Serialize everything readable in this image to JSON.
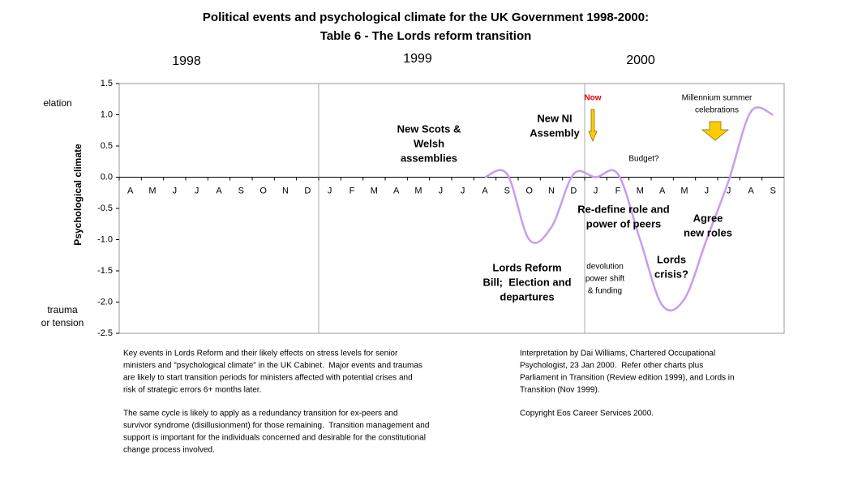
{
  "chart_data": {
    "type": "line",
    "title": "Political events and psychological climate for the UK Government 1998-2000:",
    "subtitle": "Table 6 - The Lords reform transition",
    "year_labels": [
      "1998",
      "1999",
      "2000"
    ],
    "y_label": "Psychological climate",
    "top_label": "elation",
    "bottom_label": [
      "trauma",
      "or tension"
    ],
    "categories": [
      "A",
      "M",
      "J",
      "J",
      "A",
      "S",
      "O",
      "N",
      "D",
      "J",
      "F",
      "M",
      "A",
      "M",
      "J",
      "J",
      "A",
      "S",
      "O",
      "N",
      "D",
      "J",
      "F",
      "M",
      "A",
      "M",
      "J",
      "J",
      "A",
      "S"
    ],
    "series": [
      {
        "color": "#c89cf0",
        "values": [
          null,
          null,
          null,
          null,
          null,
          null,
          null,
          null,
          null,
          null,
          null,
          null,
          null,
          null,
          null,
          null,
          0,
          0.05,
          -1.0,
          -0.8,
          0.05,
          0.0,
          0.05,
          -1.0,
          -2.05,
          -1.95,
          -1.0,
          -0.05,
          1.05,
          1.0
        ]
      }
    ],
    "ylim": [
      -2.5,
      1.5
    ],
    "yticks": [
      1.5,
      {
        "value": 1.0,
        "label": "1.0"
      },
      0.5,
      {
        "value": 0.0,
        "label": "0.0"
      },
      -0.5,
      {
        "value": -1.0,
        "label": "-1.0"
      },
      -1.5,
      {
        "value": -2.0,
        "label": "-2.0"
      },
      -2.5
    ],
    "annotations": [
      {
        "lines": [
          "New Scots &",
          "Welsh",
          "assemblies"
        ]
      },
      {
        "lines": [
          "New NI",
          "Assembly"
        ]
      },
      {
        "lines": [
          "Now"
        ]
      },
      {
        "lines": [
          "Millennium summer",
          "celebrations"
        ]
      },
      {
        "lines": [
          "Budget?"
        ]
      },
      {
        "lines": [
          "Re-define role and",
          "power of peers"
        ]
      },
      {
        "lines": [
          "Agree",
          "new roles"
        ]
      },
      {
        "lines": [
          "Lords",
          "crisis?"
        ]
      },
      {
        "lines": [
          "Lords Reform",
          "Bill;  Election and",
          "departures"
        ]
      },
      {
        "lines": [
          "devolution",
          "power shift",
          "& funding"
        ]
      }
    ],
    "notes": {
      "left": [
        [
          "Key events in Lords Reform and their likely effects on stress levels for senior",
          "ministers and \"psychological climate\" in the UK Cabinet.  Major events and traumas",
          "are likely to start transition periods for ministers affected with potential crises and",
          "risk of strategic errors 6+ months later."
        ],
        [
          "The same cycle is likely to apply as a redundancy transition for ex-peers and",
          "survivor syndrome (disillusionment) for those remaining.  Transition management and",
          "support is important for the individuals concerned and desirable for the constitutional",
          "change process involved."
        ]
      ],
      "right": [
        [
          "Interpretation by Dai Williams, Chartered Occupational",
          "Psychologist, 23 Jan 2000.  Refer other charts plus",
          "Parliament in Transition (Review edition 1999), and Lords in",
          "Transition (Nov 1999)."
        ],
        [
          "Copyright Eos Career Services 2000."
        ]
      ]
    }
  }
}
